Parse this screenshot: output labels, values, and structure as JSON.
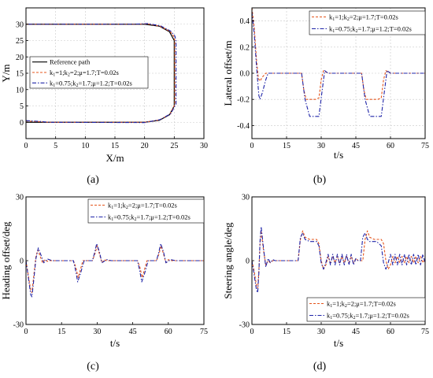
{
  "colors": {
    "reference": "#000000",
    "series1": "#e4541b",
    "series2": "#1f24a8",
    "grid": "#c8c8c8",
    "axis": "#000000"
  },
  "chart_data": [
    {
      "id": "a",
      "panel_label": "(a)",
      "type": "line",
      "xlabel": "X/m",
      "ylabel": "Y/m",
      "xlim": [
        0,
        30
      ],
      "ylim": [
        -5,
        35
      ],
      "xticks": [
        0,
        5,
        10,
        15,
        20,
        25,
        30
      ],
      "yticks": [
        0,
        5,
        10,
        15,
        20,
        25,
        30
      ],
      "grid": true,
      "legend_position": "left-middle",
      "series": [
        {
          "name": "Reference path",
          "style": "solid",
          "x": [
            0,
            20,
            22.5,
            24.2,
            25,
            25,
            24.2,
            22.5,
            20,
            0
          ],
          "y": [
            0,
            0,
            0.6,
            2.3,
            5,
            25,
            27.7,
            29.4,
            30,
            30
          ]
        },
        {
          "name": "k1=1;k2=2;μ=1.7;T=0.02s",
          "legend_parts": [
            [
              "k",
              "1",
              "=1;k",
              "2",
              "=2;μ=1.7;T=0.02s"
            ]
          ],
          "style": "dash",
          "x": [
            0,
            2,
            4,
            20,
            22.5,
            24.3,
            25.1,
            25.1,
            24.9,
            24.3,
            22.6,
            20.5,
            18,
            0
          ],
          "y": [
            0.4,
            0.2,
            0,
            0,
            0.7,
            2.5,
            5.5,
            25,
            26.3,
            27.8,
            29.4,
            30.1,
            30,
            30
          ]
        },
        {
          "name": "k1=0.75;k2=1.7;μ=1.2;T=0.02s",
          "legend_parts": [
            [
              "k",
              "1",
              "=0.75;k",
              "2",
              "=1.7;μ=1.2;T=0.02s"
            ]
          ],
          "style": "dashdot",
          "x": [
            0,
            2,
            4,
            20,
            22.6,
            24.4,
            25.3,
            25.3,
            25.1,
            24.4,
            22.7,
            20.6,
            18,
            0
          ],
          "y": [
            0.5,
            0.3,
            0,
            -0.1,
            0.8,
            2.6,
            5.6,
            25,
            26.4,
            27.9,
            29.5,
            30.2,
            30,
            30
          ]
        }
      ]
    },
    {
      "id": "b",
      "panel_label": "(b)",
      "type": "line",
      "xlabel": "t/s",
      "ylabel": "Lateral offset/m",
      "xlim": [
        0,
        75
      ],
      "ylim": [
        -0.5,
        0.5
      ],
      "xticks": [
        0,
        15,
        30,
        45,
        60,
        75
      ],
      "yticks": [
        -0.4,
        -0.2,
        0.0,
        0.2,
        0.4
      ],
      "ytick_labels": [
        "-0.4",
        "-0.2",
        "0.0",
        "0.2",
        "0.4"
      ],
      "grid": true,
      "legend_position": "top-right",
      "series": [
        {
          "name": "k1=1;k2=2;μ=1.7;T=0.02s",
          "legend_parts": [
            [
              "k",
              "1",
              "=1;k",
              "2",
              "=2;μ=1.7;T=0.02s"
            ]
          ],
          "style": "dash",
          "x": [
            0,
            1,
            2,
            2.8,
            3.5,
            4.5,
            6,
            8,
            21.5,
            22.5,
            23.5,
            27.5,
            29,
            30,
            31,
            33,
            47.5,
            48.5,
            49.5,
            54.5,
            56,
            57,
            58,
            60,
            75
          ],
          "y": [
            0.5,
            0.35,
            0.1,
            -0.04,
            -0.06,
            -0.03,
            0,
            0,
            0,
            -0.13,
            -0.2,
            -0.2,
            -0.19,
            -0.05,
            0.02,
            0,
            0,
            -0.13,
            -0.2,
            -0.2,
            -0.19,
            -0.05,
            0.02,
            0,
            0
          ]
        },
        {
          "name": "k1=0.75;k2=1.7;μ=1.2;T=0.02s",
          "legend_parts": [
            [
              "k",
              "1",
              "=0.75;k",
              "2",
              "=1.7;μ=1.2;T=0.02s"
            ]
          ],
          "style": "dashdot",
          "x": [
            0,
            1,
            2,
            3,
            3.5,
            4.5,
            6,
            7,
            9,
            21.5,
            23,
            25,
            29,
            30.5,
            31.5,
            33,
            47.5,
            49,
            51,
            56,
            57.5,
            58.5,
            60,
            75
          ],
          "y": [
            0.47,
            0.3,
            0.05,
            -0.17,
            -0.2,
            -0.15,
            -0.05,
            0,
            0,
            0,
            -0.2,
            -0.33,
            -0.33,
            -0.12,
            0.02,
            0,
            0,
            -0.2,
            -0.33,
            -0.33,
            -0.12,
            0.02,
            0,
            0
          ]
        }
      ]
    },
    {
      "id": "c",
      "panel_label": "(c)",
      "type": "line",
      "xlabel": "t/s",
      "ylabel": "Heading offset/deg",
      "xlim": [
        0,
        75
      ],
      "ylim": [
        -30,
        30
      ],
      "xticks": [
        0,
        15,
        30,
        45,
        60,
        75
      ],
      "yticks": [
        -30,
        0,
        30
      ],
      "grid": false,
      "legend_position": "top-right",
      "series": [
        {
          "name": "k1=1;k2=2;μ=1.7;T=0.02s",
          "legend_parts": [
            [
              "k",
              "1",
              "=1;k",
              "2",
              "=2;μ=1.7;T=0.02s"
            ]
          ],
          "style": "dash",
          "x": [
            0,
            1,
            2,
            2.5,
            3.2,
            4.2,
            5,
            6,
            7,
            8,
            9,
            10,
            20,
            21,
            22,
            23,
            24,
            28,
            29,
            30,
            31,
            32,
            33,
            34,
            47,
            48,
            49,
            50,
            51,
            55,
            56,
            57,
            58,
            59,
            60,
            61,
            75
          ],
          "y": [
            0,
            -7,
            -14,
            -15,
            -8,
            2,
            5,
            2,
            -1,
            0.5,
            -0.3,
            0,
            0,
            -3,
            -8,
            -4,
            0,
            0,
            3,
            7,
            3,
            -1,
            0.5,
            0,
            0,
            -3,
            -8,
            -4,
            0,
            0,
            3,
            7,
            3,
            -1,
            0.5,
            0,
            0
          ]
        },
        {
          "name": "k1=0.75;k2=1.7;μ=1.2;T=0.02s",
          "legend_parts": [
            [
              "k",
              "1",
              "=0.75;k",
              "2",
              "=1.7;μ=1.2;T=0.02s"
            ]
          ],
          "style": "dashdot",
          "x": [
            0,
            1,
            2,
            2.5,
            3.2,
            4.2,
            5.2,
            6.2,
            7.5,
            9,
            11,
            20,
            21,
            21.8,
            23,
            24.5,
            28,
            29,
            29.8,
            31,
            32,
            34,
            36,
            47,
            48,
            48.8,
            50,
            51.5,
            55,
            56,
            56.8,
            58,
            59,
            61,
            63,
            75
          ],
          "y": [
            0,
            -8,
            -16,
            -17,
            -10,
            1,
            6,
            3,
            -1,
            0.8,
            0,
            0,
            -5,
            -10,
            -6,
            0,
            0,
            4,
            8,
            4,
            -1,
            0.5,
            0,
            0,
            -5,
            -10,
            -6,
            0,
            0,
            4,
            8,
            4,
            -1,
            0.5,
            0,
            0
          ]
        }
      ]
    },
    {
      "id": "d",
      "panel_label": "(d)",
      "type": "line",
      "xlabel": "t/s",
      "ylabel": "Steering angle/deg",
      "xlim": [
        0,
        75
      ],
      "ylim": [
        -30,
        30
      ],
      "xticks": [
        0,
        15,
        30,
        45,
        60,
        75
      ],
      "yticks": [
        -30,
        0,
        30
      ],
      "grid": false,
      "legend_position": "bottom-right",
      "series": [
        {
          "name": "k1=1;k2=2;μ=1.7;T=0.02s",
          "legend_parts": [
            [
              "k",
              "1",
              "=1;k",
              "2",
              "=2;μ=1.7;T=0.02s"
            ]
          ],
          "style": "dash",
          "x": [
            0,
            1,
            2,
            2.5,
            3,
            3.5,
            4,
            5,
            6,
            7,
            8,
            9,
            20,
            21,
            22,
            23,
            25,
            26,
            28,
            29,
            30,
            31,
            32,
            33,
            34,
            35,
            36,
            37,
            38,
            39,
            40,
            41,
            42,
            43,
            44,
            45,
            46,
            47,
            48,
            49,
            50,
            51,
            53,
            54,
            56,
            57,
            58,
            59,
            60,
            61,
            62,
            63,
            64,
            65,
            66,
            67,
            68,
            69,
            70,
            71,
            72,
            73,
            74,
            75
          ],
          "y": [
            0,
            -5,
            -12,
            -13,
            -5,
            8,
            14,
            5,
            -2,
            0,
            -1,
            0,
            0,
            10,
            14,
            11,
            10,
            10,
            10,
            8,
            0,
            -4,
            -2,
            2,
            -1,
            2,
            -1,
            2,
            -1,
            2,
            -1,
            2,
            -1,
            2,
            -1,
            1,
            0,
            0,
            0,
            10,
            14,
            11,
            10,
            10,
            10,
            8,
            0,
            -4,
            -2,
            2,
            -1,
            2,
            -1,
            2,
            -1,
            2,
            -1,
            2,
            -1,
            2,
            -1,
            2,
            -1,
            1
          ]
        },
        {
          "name": "k1=0.75;k2=1.7;μ=1.2;T=0.02s",
          "legend_parts": [
            [
              "k",
              "1",
              "=0.75;k",
              "2",
              "=1.7;μ=1.2;T=0.02s"
            ]
          ],
          "style": "dashdot",
          "x": [
            0,
            1,
            2,
            2.5,
            3,
            3.5,
            4,
            5,
            6,
            7,
            8,
            9,
            10,
            20,
            21,
            22,
            23,
            25,
            26,
            28,
            29,
            30,
            31,
            32,
            33,
            34,
            35,
            36,
            37,
            38,
            39,
            40,
            41,
            42,
            43,
            44,
            45,
            46,
            47,
            48,
            49,
            50,
            51,
            53,
            54,
            56,
            57,
            58,
            59,
            60,
            61,
            62,
            63,
            64,
            65,
            66,
            67,
            68,
            69,
            70,
            71,
            72,
            73,
            74,
            75
          ],
          "y": [
            0,
            -7,
            -14,
            -15,
            -6,
            9,
            16,
            6,
            -3,
            1,
            -1,
            0.5,
            0,
            0,
            11,
            13,
            10,
            9,
            9,
            9,
            7,
            -1,
            -4,
            -1,
            3,
            -2,
            3,
            -2,
            3,
            -2,
            3,
            -2,
            3,
            -2,
            3,
            -2,
            1,
            0,
            0,
            11,
            13,
            10,
            9,
            9,
            9,
            7,
            -1,
            -4,
            -1,
            3,
            -2,
            3,
            -2,
            3,
            -2,
            3,
            -2,
            3,
            -2,
            3,
            -2,
            3,
            -2,
            3,
            -1
          ]
        }
      ]
    }
  ]
}
